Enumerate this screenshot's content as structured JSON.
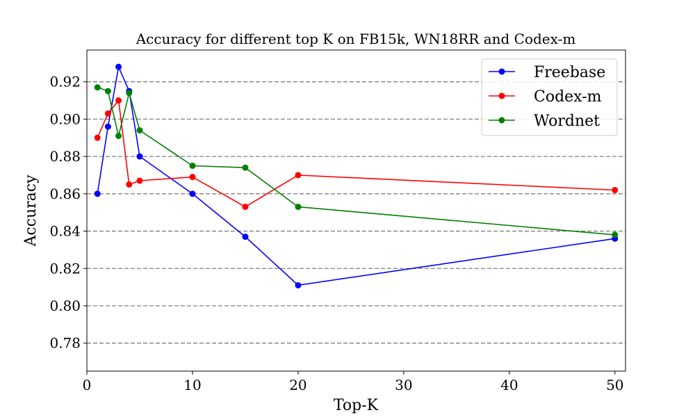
{
  "chart_data": {
    "type": "line",
    "title": "Accuracy for different top K on FB15k, WN18RR and Codex-m",
    "xlabel": "Top-K",
    "ylabel": "Accuracy",
    "xlim": [
      0,
      51
    ],
    "ylim": [
      0.765,
      0.937
    ],
    "xticks": [
      0,
      10,
      20,
      30,
      40,
      50
    ],
    "yticks": [
      0.78,
      0.8,
      0.82,
      0.84,
      0.86,
      0.88,
      0.9,
      0.92
    ],
    "grid": "horizontal dashed",
    "legend_position": "top-right",
    "x": [
      1,
      2,
      3,
      4,
      5,
      10,
      15,
      20,
      50
    ],
    "series": [
      {
        "name": "Freebase",
        "color": "#0000ff",
        "values": [
          0.86,
          0.896,
          0.928,
          0.915,
          0.88,
          0.86,
          0.837,
          0.811,
          0.836
        ]
      },
      {
        "name": "Codex-m",
        "color": "#ff0000",
        "values": [
          0.89,
          0.903,
          0.91,
          0.865,
          0.867,
          0.869,
          0.853,
          0.87,
          0.862
        ]
      },
      {
        "name": "Wordnet",
        "color": "#008000",
        "values": [
          0.917,
          0.915,
          0.891,
          0.914,
          0.894,
          0.875,
          0.874,
          0.853,
          0.838
        ]
      }
    ]
  }
}
